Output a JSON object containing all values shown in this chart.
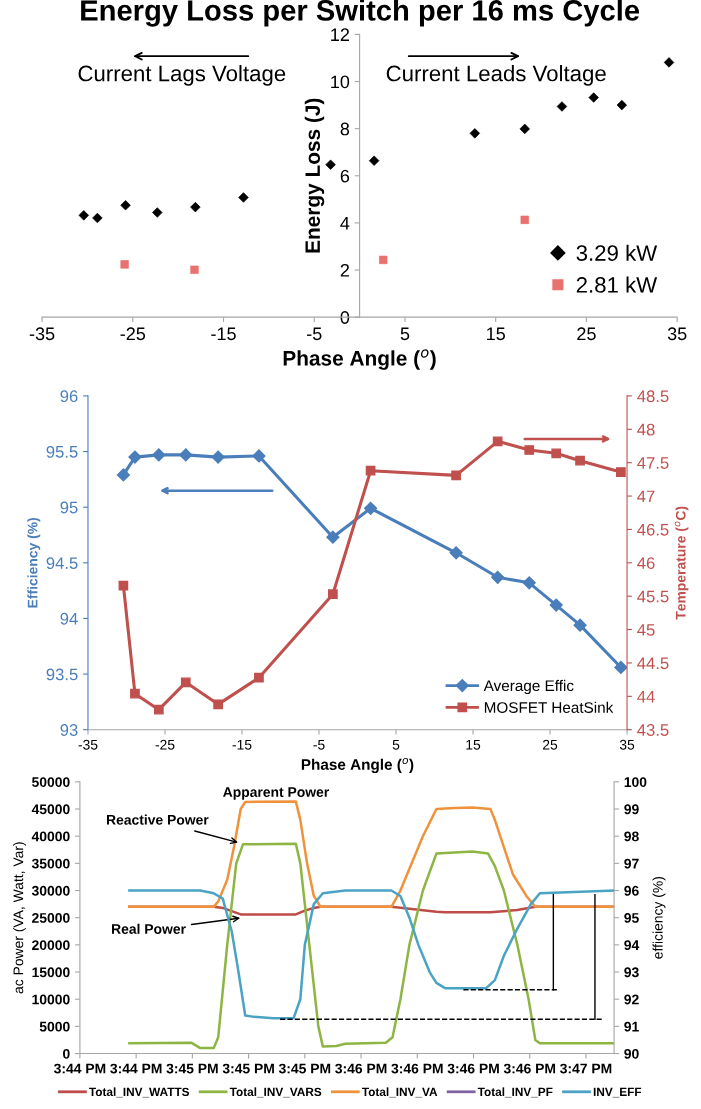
{
  "chart_data": [
    {
      "type": "scatter",
      "title": "Energy Loss per Switch per 16 ms Cycle",
      "xlabel": "Phase Angle ($^{o}$)",
      "ylabel": "Energy Loss (J)",
      "xlim": [
        -35,
        35
      ],
      "xticks": [
        -35,
        -25,
        -15,
        -5,
        5,
        15,
        25,
        35
      ],
      "ylim": [
        0,
        12
      ],
      "yticks": [
        0,
        2,
        4,
        6,
        8,
        10,
        12
      ],
      "legend": "bottom right",
      "annotations": [
        "Current Lags Voltage",
        "Current Leads Voltage"
      ],
      "series": [
        {
          "name": "3.29 kW",
          "color": "#000000",
          "marker": "diamond",
          "x": [
            -30.4,
            -28.9,
            -25.8,
            -22.3,
            -18.1,
            -12.8,
            -3.2,
            1.6,
            12.7,
            18.2,
            22.3,
            25.8,
            28.9,
            34.1
          ],
          "values": [
            4.32,
            4.21,
            4.75,
            4.44,
            4.67,
            5.08,
            6.47,
            6.64,
            7.8,
            7.99,
            8.94,
            9.32,
            9.0,
            10.81
          ]
        },
        {
          "name": "2.81 kW",
          "color": "#e8726f",
          "marker": "square",
          "x": [
            -25.9,
            -18.2,
            2.6,
            18.2
          ],
          "values": [
            2.24,
            2.01,
            2.43,
            4.13
          ]
        }
      ]
    },
    {
      "type": "line",
      "xlabel": "Phase Angle ($^{o}$)",
      "ylabel": "Efficiency (%)",
      "y2label": "Temperature ($^{o}$C)",
      "xlim": [
        -35,
        35
      ],
      "xticks": [
        -35,
        -25,
        -15,
        -5,
        5,
        15,
        25,
        35
      ],
      "ylim": [
        93,
        96
      ],
      "yticks": [
        93,
        93.5,
        94,
        94.5,
        95,
        95.5,
        96
      ],
      "y2lim": [
        43.5,
        48.5
      ],
      "y2ticks": [
        43.5,
        44,
        44.5,
        45,
        45.5,
        46,
        46.5,
        47,
        47.5,
        48,
        48.5
      ],
      "legend": "bottom right",
      "x": [
        -30.4,
        -28.9,
        -25.8,
        -22.3,
        -18.1,
        -12.8,
        -3.2,
        1.7,
        12.8,
        18.2,
        22.3,
        25.8,
        28.9,
        34.2
      ],
      "series": [
        {
          "name": "Average Effic",
          "color": "#4a7ebb",
          "marker": "diamond",
          "values": [
            95.29,
            95.45,
            95.47,
            95.47,
            95.45,
            95.46,
            94.73,
            94.99,
            94.59,
            94.37,
            94.32,
            94.12,
            93.94,
            93.56
          ]
        },
        {
          "name": "MOSFET HeatSink",
          "color": "#c0504d",
          "marker": "square",
          "axis": "y2",
          "values": [
            45.66,
            44.04,
            43.8,
            44.21,
            43.88,
            44.28,
            45.53,
            47.38,
            47.31,
            47.82,
            47.69,
            47.64,
            47.53,
            47.36
          ]
        }
      ]
    },
    {
      "type": "line",
      "ylabel": "ac Power (VA, Watt, Var)",
      "y2label": "efficiency (%)",
      "xlim": [
        15.7339,
        15.7814
      ],
      "xticks": [
        {
          "value": 15.7339,
          "label": "3:44 PM"
        },
        {
          "value": 15.7389,
          "label": "3:44 PM"
        },
        {
          "value": 15.7439,
          "label": "3:45 PM"
        },
        {
          "value": 15.7489,
          "label": "3:45 PM"
        },
        {
          "value": 15.7539,
          "label": "3:45 PM"
        },
        {
          "value": 15.7589,
          "label": "3:46 PM"
        },
        {
          "value": 15.7639,
          "label": "3:46 PM"
        },
        {
          "value": 15.7689,
          "label": "3:46 PM"
        },
        {
          "value": 15.7739,
          "label": "3:46 PM"
        },
        {
          "value": 15.7789,
          "label": "3:47 PM"
        }
      ],
      "ylim": [
        0,
        50000
      ],
      "yticks": [
        0,
        5000,
        10000,
        15000,
        20000,
        25000,
        30000,
        35000,
        40000,
        45000,
        50000
      ],
      "y2lim": [
        90,
        100
      ],
      "y2ticks": [
        90,
        91,
        92,
        93,
        94,
        95,
        96,
        97,
        98,
        99,
        100
      ],
      "legend": "bottom",
      "annotations": [
        "Apparent Power",
        {
          "text": "Reactive Power",
          "x": 15.7482,
          "y": 38700
        },
        {
          "text": "Real Power",
          "x": 15.7484,
          "y": 25000
        }
      ],
      "series": [
        {
          "name": "Total_INV_WATTS",
          "color": "#be4b48",
          "x": [
            15.7383,
            15.7458,
            15.7466,
            15.7482,
            15.7531,
            15.7539,
            15.7547,
            15.7553,
            15.7616,
            15.7656,
            15.7664,
            15.7704,
            15.7728,
            15.7744,
            15.7814
          ],
          "values": [
            27000,
            27000,
            26800,
            25600,
            25600,
            26300,
            26800,
            27000,
            27000,
            26100,
            26000,
            26000,
            26400,
            27000,
            27000
          ]
        },
        {
          "name": "Total_INV_VARS",
          "color": "#8db543",
          "x": [
            15.7383,
            15.7438,
            15.7446,
            15.7458,
            15.7462,
            15.747,
            15.7478,
            15.7484,
            15.7531,
            15.7535,
            15.7543,
            15.7551,
            15.7555,
            15.7567,
            15.7575,
            15.7611,
            15.7617,
            15.7624,
            15.7632,
            15.7644,
            15.7656,
            15.7672,
            15.7688,
            15.7702,
            15.7708,
            15.7716,
            15.7728,
            15.7738,
            15.7744,
            15.7748,
            15.7814
          ],
          "values": [
            1900,
            2000,
            1000,
            1000,
            3000,
            20000,
            35000,
            38500,
            38600,
            35000,
            20000,
            5000,
            1300,
            1400,
            1800,
            2000,
            3000,
            10000,
            20000,
            30000,
            36800,
            37000,
            37200,
            36800,
            34500,
            30000,
            20000,
            10000,
            2500,
            1900,
            1900
          ]
        },
        {
          "name": "Total_INV_VA",
          "color": "#f0923c",
          "x": [
            15.7383,
            15.7458,
            15.7462,
            15.747,
            15.7476,
            15.7482,
            15.7486,
            15.7531,
            15.7535,
            15.7541,
            15.7547,
            15.7553,
            15.7616,
            15.7624,
            15.7632,
            15.7644,
            15.7656,
            15.7672,
            15.7688,
            15.7704,
            15.7708,
            15.7716,
            15.7724,
            15.7736,
            15.7744,
            15.7814
          ],
          "values": [
            27000,
            27000,
            28000,
            32000,
            38000,
            45000,
            46300,
            46400,
            43000,
            35000,
            29000,
            27000,
            27000,
            30000,
            34000,
            40000,
            45000,
            45200,
            45300,
            45000,
            43000,
            38000,
            33000,
            29000,
            27000,
            27000
          ]
        },
        {
          "name": "Total_INV_PF",
          "color": "#7f63a1"
        },
        {
          "name": "INV_EFF",
          "color": "#4aa3c4",
          "axis": "y2",
          "x": [
            15.7383,
            15.7446,
            15.7458,
            15.7466,
            15.7474,
            15.748,
            15.7486,
            15.7494,
            15.7511,
            15.7529,
            15.7535,
            15.7539,
            15.7547,
            15.7555,
            15.7575,
            15.7616,
            15.7624,
            15.7632,
            15.764,
            15.765,
            15.7656,
            15.7664,
            15.77,
            15.7708,
            15.7716,
            15.7728,
            15.774,
            15.7748,
            15.7814
          ],
          "values": [
            96.0,
            96.0,
            95.9,
            95.7,
            94.5,
            93.0,
            91.4,
            91.35,
            91.3,
            91.3,
            92.0,
            94.0,
            95.5,
            95.9,
            96.0,
            96.0,
            95.8,
            95.0,
            94.0,
            93.0,
            92.6,
            92.4,
            92.4,
            92.7,
            93.6,
            94.6,
            95.5,
            95.9,
            96.0
          ]
        },
        {
          "color": "#000000",
          "axis": "y2",
          "line_style": "dashed",
          "x": [
            15.768,
            15.7765
          ],
          "values": [
            92.35,
            92.35
          ]
        },
        {
          "color": "#000000",
          "axis": "y2",
          "line_style": "dashed",
          "x": [
            15.7517,
            15.7803
          ],
          "values": [
            91.26,
            91.26
          ]
        },
        {
          "color": "#000000",
          "axis": "y2",
          "x": [
            15.776,
            15.776
          ],
          "values": [
            95.85,
            92.35
          ]
        },
        {
          "color": "#000000",
          "axis": "y2",
          "x": [
            15.7797,
            15.7797
          ],
          "values": [
            95.85,
            91.26
          ]
        }
      ]
    }
  ]
}
